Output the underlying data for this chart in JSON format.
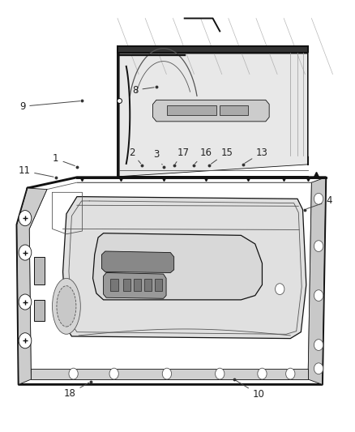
{
  "background_color": "#ffffff",
  "fig_width": 4.38,
  "fig_height": 5.33,
  "dpi": 100,
  "text_color": "#222222",
  "lc": "#555555",
  "lc_dark": "#111111",
  "lc_light": "#999999",
  "lw_main": 1.4,
  "lw_thin": 0.6,
  "lw_med": 0.9,
  "callout_fontsize": 8.5,
  "callouts": {
    "1": {
      "lbl": [
        0.155,
        0.633
      ],
      "pt": [
        0.215,
        0.615
      ]
    },
    "2": {
      "lbl": [
        0.37,
        0.648
      ],
      "pt": [
        0.4,
        0.618
      ]
    },
    "3": {
      "lbl": [
        0.44,
        0.643
      ],
      "pt": [
        0.46,
        0.615
      ]
    },
    "4": {
      "lbl": [
        0.93,
        0.535
      ],
      "pt": [
        0.86,
        0.515
      ]
    },
    "8": {
      "lbl": [
        0.38,
        0.793
      ],
      "pt": [
        0.44,
        0.8
      ]
    },
    "9": {
      "lbl": [
        0.06,
        0.755
      ],
      "pt": [
        0.23,
        0.768
      ]
    },
    "10": {
      "lbl": [
        0.73,
        0.085
      ],
      "pt": [
        0.66,
        0.12
      ]
    },
    "11": {
      "lbl": [
        0.065,
        0.605
      ],
      "pt": [
        0.155,
        0.59
      ]
    },
    "13": {
      "lbl": [
        0.74,
        0.648
      ],
      "pt": [
        0.685,
        0.62
      ]
    },
    "15": {
      "lbl": [
        0.64,
        0.648
      ],
      "pt": [
        0.59,
        0.618
      ]
    },
    "16": {
      "lbl": [
        0.58,
        0.648
      ],
      "pt": [
        0.545,
        0.618
      ]
    },
    "17": {
      "lbl": [
        0.516,
        0.648
      ],
      "pt": [
        0.49,
        0.617
      ]
    },
    "18": {
      "lbl": [
        0.195,
        0.087
      ],
      "pt": [
        0.255,
        0.115
      ]
    }
  }
}
